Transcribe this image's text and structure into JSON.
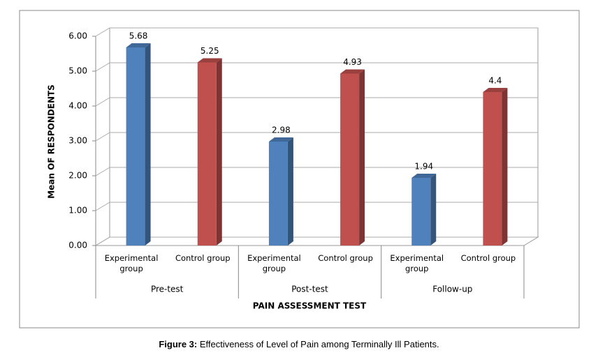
{
  "chart_data": {
    "type": "bar",
    "y_axis_label": "Mean  OF RESPONDENTS",
    "x_axis_label": "PAIN ASSESSMENT TEST",
    "groups": [
      "Pre-test",
      "Post-test",
      "Follow-up"
    ],
    "categories": [
      "Experimental group",
      "Control group",
      "Experimental group",
      "Control group",
      "Experimental group",
      "Control group"
    ],
    "values": [
      5.68,
      5.25,
      2.98,
      4.93,
      1.94,
      4.4
    ],
    "bar_colors": [
      "#4f81bd",
      "#c0504d"
    ],
    "ylim": [
      0,
      6
    ],
    "yticks": [
      {
        "value": 0,
        "label": "0.00"
      },
      {
        "value": 1,
        "label": "1.00"
      },
      {
        "value": 2,
        "label": "2.00"
      },
      {
        "value": 3,
        "label": "3.00"
      },
      {
        "value": 4,
        "label": "4.00"
      },
      {
        "value": 5,
        "label": "5.00"
      },
      {
        "value": 6,
        "label": "6.00"
      }
    ],
    "grid": true
  },
  "caption": {
    "label": "Figure 3:",
    "text": "Effectiveness of Level of Pain among Terminally Ill Patients."
  }
}
